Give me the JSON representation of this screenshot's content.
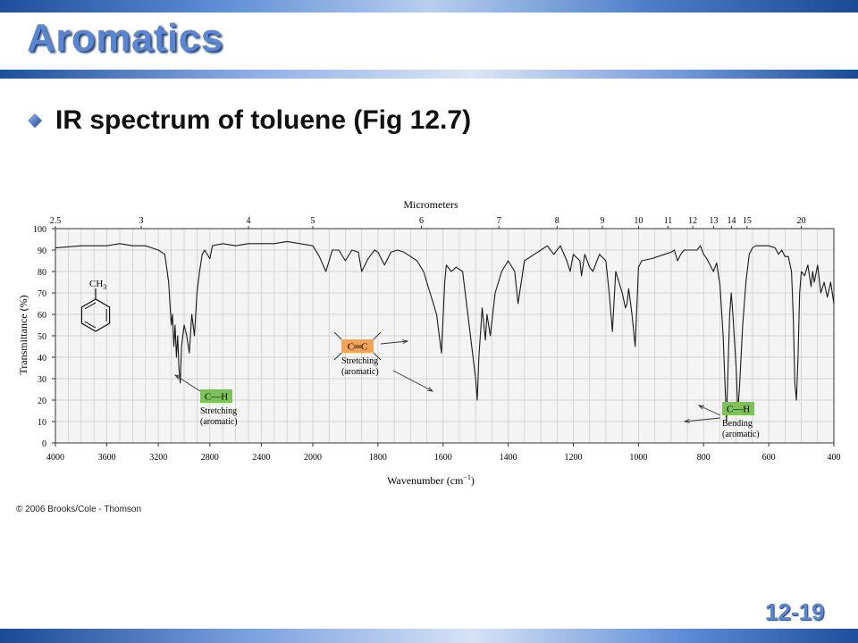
{
  "slide": {
    "title": "Aromatics",
    "bullet": "IR spectrum of toluene (Fig 12.7)",
    "number": "12-19",
    "copyright": "© 2006 Brooks/Cole - Thomson"
  },
  "colors": {
    "title": "#5a86d1",
    "stripe_dark": "#1d4f9c",
    "label_green": "#7dc15a",
    "label_orange": "#f2a45a",
    "grid": "#c8c8c8"
  },
  "chart_data": {
    "type": "line",
    "top_axis_title": "Micrometers",
    "top_ticks": [
      "2.5",
      "3",
      "4",
      "5",
      "6",
      "7",
      "8",
      "9",
      "10",
      "11",
      "12",
      "13",
      "14",
      "15",
      "20"
    ],
    "top_tick_values_um": [
      2.5,
      3,
      4,
      5,
      6,
      7,
      8,
      9,
      10,
      11,
      12,
      13,
      14,
      15,
      20
    ],
    "xlabel": "Wavenumber (cm",
    "xlabel_sup": "−1",
    "xlabel_end": ")",
    "x_ticks": [
      "4000",
      "3600",
      "3200",
      "2800",
      "2400",
      "2000",
      "1800",
      "1600",
      "1400",
      "1200",
      "1000",
      "800",
      "600",
      "400"
    ],
    "x_tick_values": [
      4000,
      3600,
      3200,
      2800,
      2400,
      2000,
      1800,
      1600,
      1400,
      1200,
      1000,
      800,
      600,
      400
    ],
    "ylabel": "Transmittance (%)",
    "y_ticks": [
      "0",
      "10",
      "20",
      "30",
      "40",
      "50",
      "60",
      "70",
      "80",
      "90",
      "100"
    ],
    "ylim": [
      0,
      100
    ],
    "grid": true,
    "series": [
      {
        "values": [
          [
            4000,
            91
          ],
          [
            3800,
            92
          ],
          [
            3600,
            92
          ],
          [
            3500,
            93
          ],
          [
            3400,
            92
          ],
          [
            3300,
            92
          ],
          [
            3250,
            91
          ],
          [
            3200,
            90
          ],
          [
            3150,
            88
          ],
          [
            3120,
            75
          ],
          [
            3100,
            55
          ],
          [
            3090,
            60
          ],
          [
            3080,
            45
          ],
          [
            3070,
            55
          ],
          [
            3060,
            40
          ],
          [
            3050,
            50
          ],
          [
            3040,
            35
          ],
          [
            3030,
            28
          ],
          [
            3020,
            45
          ],
          [
            3000,
            55
          ],
          [
            2980,
            50
          ],
          [
            2960,
            42
          ],
          [
            2940,
            60
          ],
          [
            2920,
            50
          ],
          [
            2900,
            70
          ],
          [
            2880,
            80
          ],
          [
            2860,
            88
          ],
          [
            2840,
            90
          ],
          [
            2800,
            86
          ],
          [
            2780,
            92
          ],
          [
            2700,
            93
          ],
          [
            2600,
            92
          ],
          [
            2500,
            93
          ],
          [
            2400,
            93
          ],
          [
            2300,
            93
          ],
          [
            2200,
            94
          ],
          [
            2100,
            93
          ],
          [
            2000,
            92
          ],
          [
            1980,
            87
          ],
          [
            1960,
            80
          ],
          [
            1940,
            90
          ],
          [
            1920,
            90
          ],
          [
            1900,
            85
          ],
          [
            1880,
            90
          ],
          [
            1860,
            89
          ],
          [
            1850,
            80
          ],
          [
            1830,
            86
          ],
          [
            1810,
            90
          ],
          [
            1800,
            89
          ],
          [
            1780,
            83
          ],
          [
            1760,
            89
          ],
          [
            1740,
            90
          ],
          [
            1720,
            89
          ],
          [
            1700,
            87
          ],
          [
            1680,
            85
          ],
          [
            1660,
            80
          ],
          [
            1640,
            70
          ],
          [
            1620,
            60
          ],
          [
            1605,
            42
          ],
          [
            1595,
            75
          ],
          [
            1590,
            83
          ],
          [
            1575,
            80
          ],
          [
            1560,
            82
          ],
          [
            1540,
            80
          ],
          [
            1520,
            55
          ],
          [
            1500,
            30
          ],
          [
            1495,
            20
          ],
          [
            1490,
            40
          ],
          [
            1480,
            63
          ],
          [
            1470,
            48
          ],
          [
            1465,
            60
          ],
          [
            1455,
            50
          ],
          [
            1440,
            70
          ],
          [
            1420,
            80
          ],
          [
            1400,
            85
          ],
          [
            1380,
            80
          ],
          [
            1370,
            65
          ],
          [
            1360,
            75
          ],
          [
            1350,
            85
          ],
          [
            1320,
            88
          ],
          [
            1300,
            90
          ],
          [
            1280,
            92
          ],
          [
            1260,
            88
          ],
          [
            1240,
            92
          ],
          [
            1220,
            85
          ],
          [
            1210,
            80
          ],
          [
            1200,
            88
          ],
          [
            1180,
            85
          ],
          [
            1175,
            78
          ],
          [
            1165,
            88
          ],
          [
            1150,
            82
          ],
          [
            1140,
            80
          ],
          [
            1120,
            88
          ],
          [
            1100,
            85
          ],
          [
            1090,
            70
          ],
          [
            1080,
            52
          ],
          [
            1070,
            80
          ],
          [
            1050,
            70
          ],
          [
            1040,
            63
          ],
          [
            1035,
            65
          ],
          [
            1030,
            72
          ],
          [
            1020,
            60
          ],
          [
            1010,
            45
          ],
          [
            1000,
            82
          ],
          [
            990,
            85
          ],
          [
            960,
            86
          ],
          [
            920,
            88
          ],
          [
            900,
            89
          ],
          [
            890,
            90
          ],
          [
            880,
            85
          ],
          [
            870,
            88
          ],
          [
            860,
            90
          ],
          [
            840,
            90
          ],
          [
            820,
            90
          ],
          [
            810,
            92
          ],
          [
            800,
            88
          ],
          [
            790,
            86
          ],
          [
            780,
            83
          ],
          [
            770,
            80
          ],
          [
            760,
            84
          ],
          [
            750,
            74
          ],
          [
            740,
            50
          ],
          [
            730,
            10
          ],
          [
            720,
            60
          ],
          [
            715,
            70
          ],
          [
            710,
            60
          ],
          [
            700,
            35
          ],
          [
            695,
            15
          ],
          [
            690,
            25
          ],
          [
            680,
            55
          ],
          [
            670,
            75
          ],
          [
            660,
            88
          ],
          [
            650,
            91
          ],
          [
            640,
            92
          ],
          [
            620,
            92
          ],
          [
            600,
            92
          ],
          [
            580,
            91
          ],
          [
            570,
            88
          ],
          [
            560,
            90
          ],
          [
            550,
            87
          ],
          [
            540,
            87
          ],
          [
            530,
            80
          ],
          [
            525,
            60
          ],
          [
            520,
            28
          ],
          [
            515,
            20
          ],
          [
            510,
            40
          ],
          [
            505,
            70
          ],
          [
            500,
            80
          ],
          [
            490,
            78
          ],
          [
            480,
            83
          ],
          [
            470,
            73
          ],
          [
            465,
            80
          ],
          [
            460,
            75
          ],
          [
            450,
            83
          ],
          [
            440,
            70
          ],
          [
            430,
            75
          ],
          [
            420,
            68
          ],
          [
            410,
            75
          ],
          [
            400,
            65
          ]
        ]
      }
    ],
    "annotations": [
      {
        "text_top": "C—H",
        "text": "Stretching",
        "text2": "(aromatic)"
      },
      {
        "text_top": "C═C",
        "text": "Stretching",
        "text2": "(aromatic)"
      },
      {
        "text_top": "C—H",
        "text": "Bending",
        "text2": "(aromatic)"
      }
    ],
    "structure_label": "CH",
    "structure_sub": "3"
  }
}
